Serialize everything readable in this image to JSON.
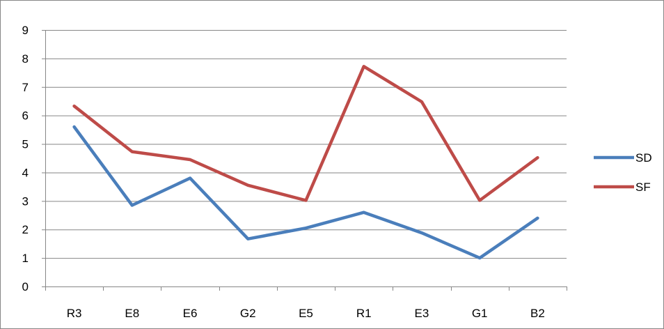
{
  "chart_data": {
    "type": "line",
    "categories": [
      "R3",
      "E8",
      "E6",
      "G2",
      "E5",
      "R1",
      "E3",
      "G1",
      "B2"
    ],
    "series": [
      {
        "name": "SD",
        "color": "#4A7EBB",
        "values": [
          5.6,
          2.85,
          3.8,
          1.67,
          2.05,
          2.6,
          1.88,
          1.0,
          2.4
        ]
      },
      {
        "name": "SF",
        "color": "#BE4B48",
        "values": [
          6.33,
          4.73,
          4.45,
          3.55,
          3.02,
          7.72,
          6.48,
          3.02,
          4.52
        ]
      }
    ],
    "ylim": [
      0,
      9
    ],
    "yticks": [
      "0",
      "1",
      "2",
      "3",
      "4",
      "5",
      "6",
      "7",
      "8",
      "9"
    ],
    "grid": "horizontal",
    "legend_position": "right",
    "gridline_color": "#868686"
  }
}
